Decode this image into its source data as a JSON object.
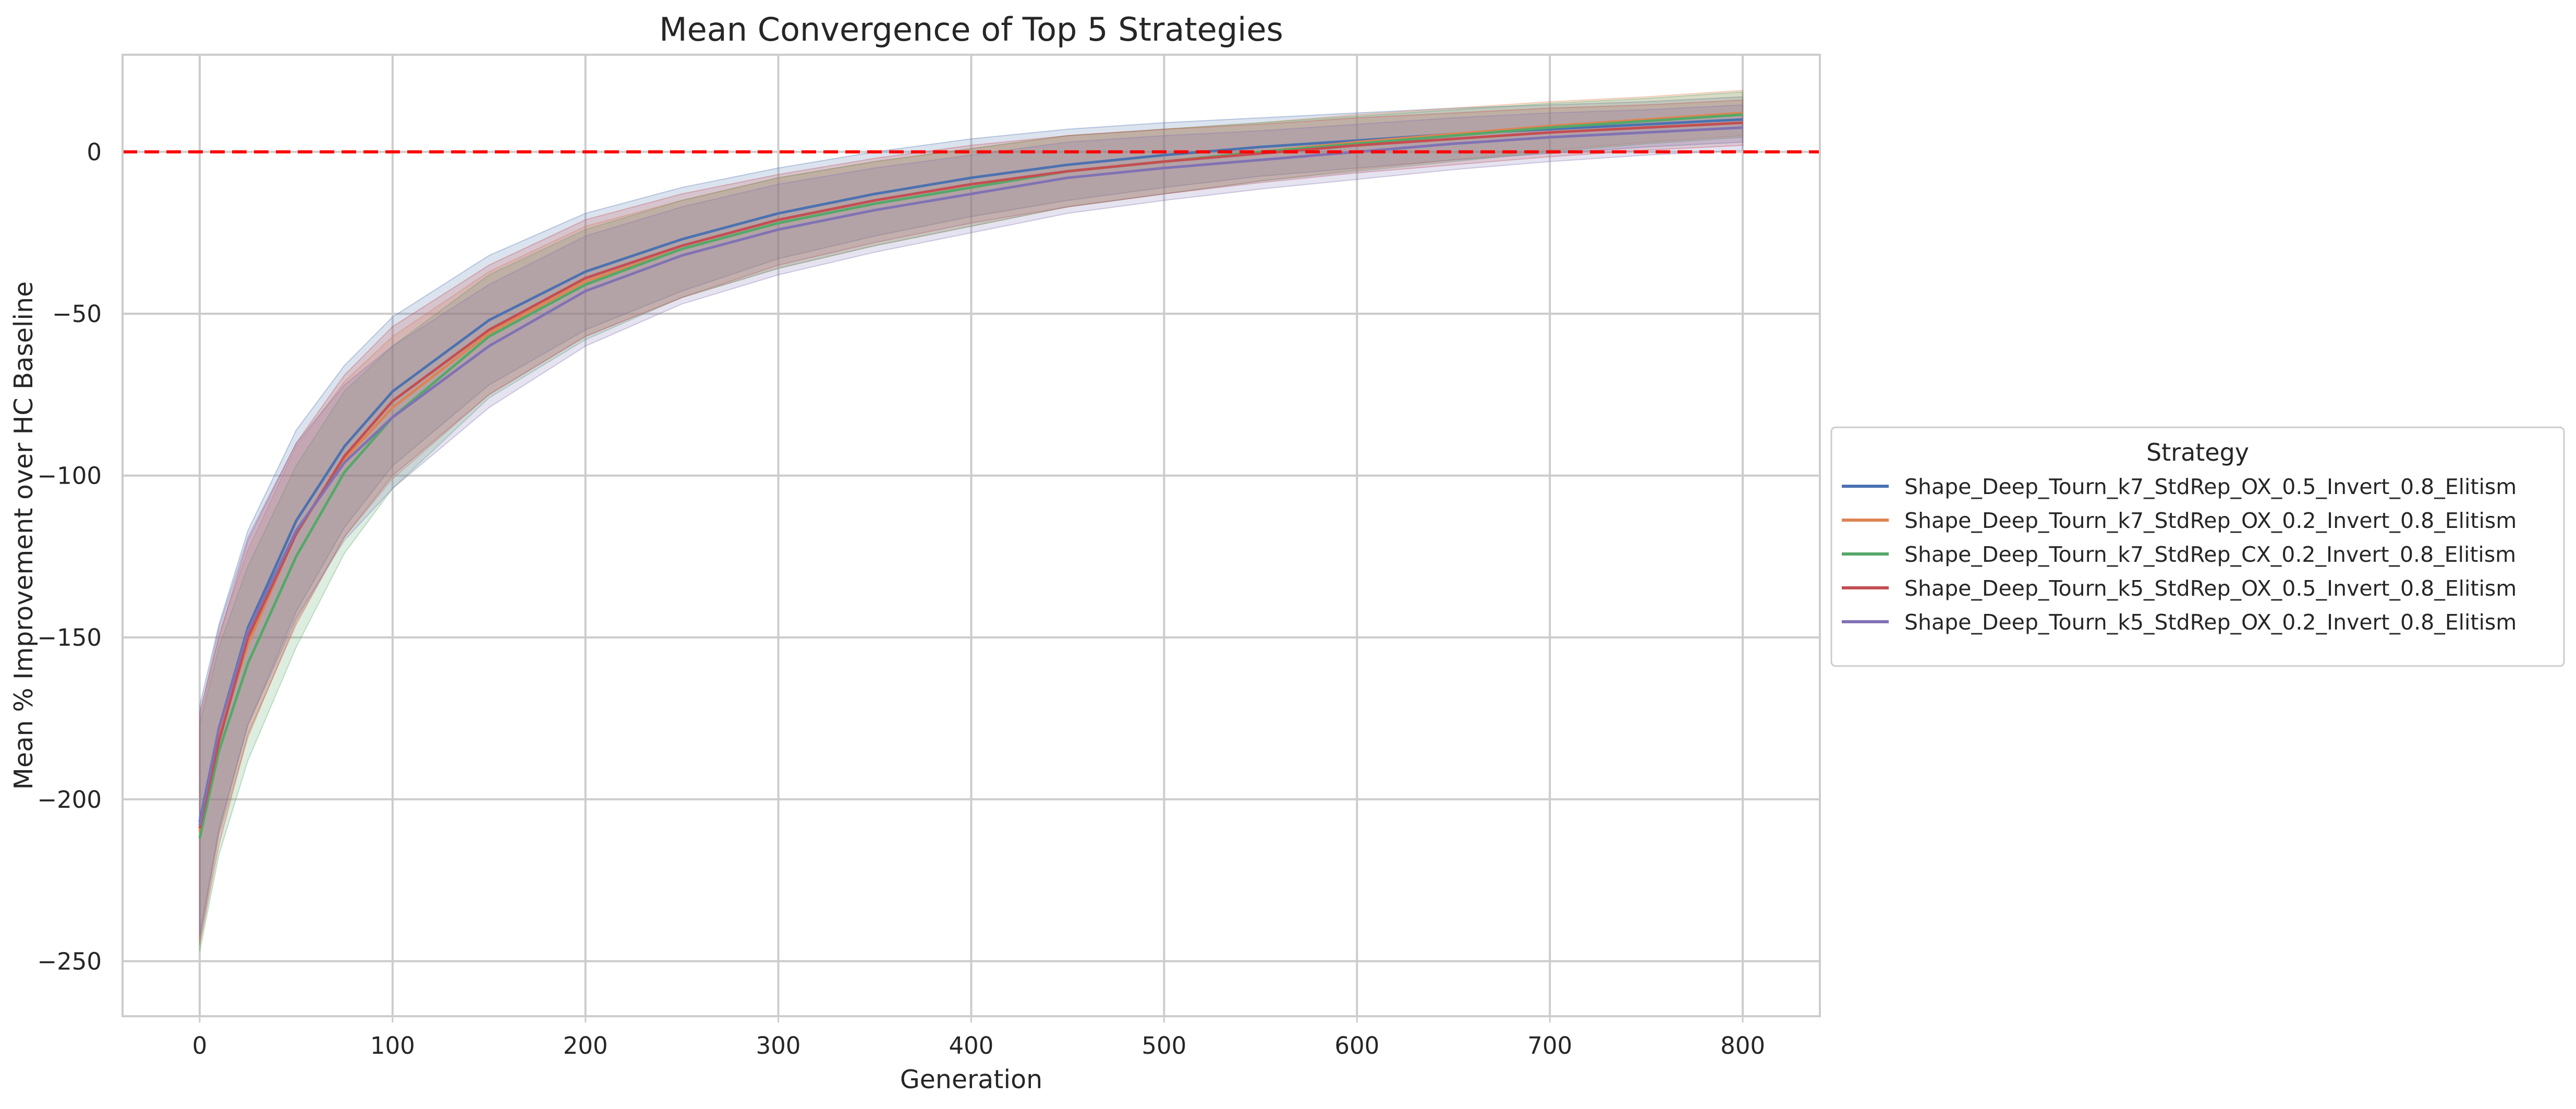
{
  "chart_data": {
    "type": "line",
    "title": "Mean Convergence of Top 5 Strategies",
    "xlabel": "Generation",
    "ylabel": "Mean % Improvement over HC Baseline",
    "xlim": [
      -40,
      840
    ],
    "ylim": [
      -267,
      30
    ],
    "xticks": [
      0,
      100,
      200,
      300,
      400,
      500,
      600,
      700,
      800
    ],
    "yticks": [
      -250,
      -200,
      -150,
      -100,
      -50,
      0
    ],
    "grid": true,
    "background": "#ffffff",
    "grid_color": "#cccccc",
    "baseline": {
      "y": 0,
      "color": "#ff0000",
      "style": "dashed"
    },
    "legend": {
      "title": "Strategy",
      "placement": "center-right-outside"
    },
    "x": [
      0,
      10,
      25,
      50,
      75,
      100,
      150,
      200,
      250,
      300,
      350,
      400,
      450,
      500,
      550,
      600,
      650,
      700,
      750,
      800
    ],
    "series": [
      {
        "name": "Shape_Deep_Tourn_k7_StdRep_OX_0.5_Invert_0.8_Elitism",
        "color": "#4c72b0",
        "values": [
          -207,
          -178,
          -147,
          -114,
          -91,
          -74,
          -52,
          -37,
          -27,
          -19,
          -13,
          -8,
          -4,
          -1,
          1.5,
          3.5,
          5.5,
          7,
          8.5,
          10
        ],
        "band": [
          36,
          32,
          30,
          28,
          25,
          23,
          20,
          18,
          16,
          14,
          13,
          12,
          11,
          10,
          9,
          8.5,
          8,
          7.5,
          7,
          7
        ]
      },
      {
        "name": "Shape_Deep_Tourn_k7_StdRep_OX_0.2_Invert_0.8_Elitism",
        "color": "#dd8452",
        "values": [
          -210,
          -180,
          -152,
          -118,
          -95,
          -79,
          -56,
          -40,
          -30,
          -22,
          -16,
          -11,
          -6,
          -3,
          0,
          3,
          5.5,
          8,
          10,
          12
        ],
        "band": [
          34,
          31,
          29,
          27,
          24,
          22,
          19,
          17,
          15,
          14,
          13,
          12,
          11,
          10,
          9,
          8.5,
          8,
          7.5,
          7,
          7
        ]
      },
      {
        "name": "Shape_Deep_Tourn_k7_StdRep_CX_0.2_Invert_0.8_Elitism",
        "color": "#55a868",
        "values": [
          -212,
          -185,
          -158,
          -125,
          -99,
          -82,
          -57,
          -41,
          -30,
          -22,
          -16,
          -11,
          -6,
          -3,
          0,
          2.5,
          5,
          7.5,
          9.5,
          11.5
        ],
        "band": [
          35,
          32,
          30,
          28,
          25,
          22,
          19,
          17,
          15,
          14,
          13,
          12,
          11,
          10,
          9,
          8.5,
          8,
          7.5,
          7,
          7
        ]
      },
      {
        "name": "Shape_Deep_Tourn_k5_StdRep_OX_0.5_Invert_0.8_Elitism",
        "color": "#c44e52",
        "values": [
          -209,
          -182,
          -150,
          -118,
          -94,
          -77,
          -55,
          -39,
          -29,
          -21,
          -15,
          -10,
          -6,
          -3,
          -0.5,
          2,
          4,
          6,
          7.5,
          9
        ],
        "band": [
          36,
          32,
          30,
          28,
          25,
          23,
          20,
          18,
          16,
          14,
          13,
          12,
          11,
          10,
          9,
          8.5,
          8,
          7.5,
          7,
          7
        ]
      },
      {
        "name": "Shape_Deep_Tourn_k5_StdRep_OX_0.2_Invert_0.8_Elitism",
        "color": "#8172b3",
        "values": [
          -208,
          -178,
          -148,
          -117,
          -96,
          -82,
          -60,
          -43,
          -32,
          -24,
          -18,
          -13,
          -8,
          -5,
          -2.5,
          0,
          2.5,
          4.5,
          6,
          7.5
        ],
        "band": [
          34,
          31,
          29,
          27,
          24,
          22,
          19,
          17,
          15,
          14,
          13,
          12,
          11,
          10,
          9,
          8.5,
          8,
          7.5,
          7,
          7
        ]
      }
    ]
  }
}
